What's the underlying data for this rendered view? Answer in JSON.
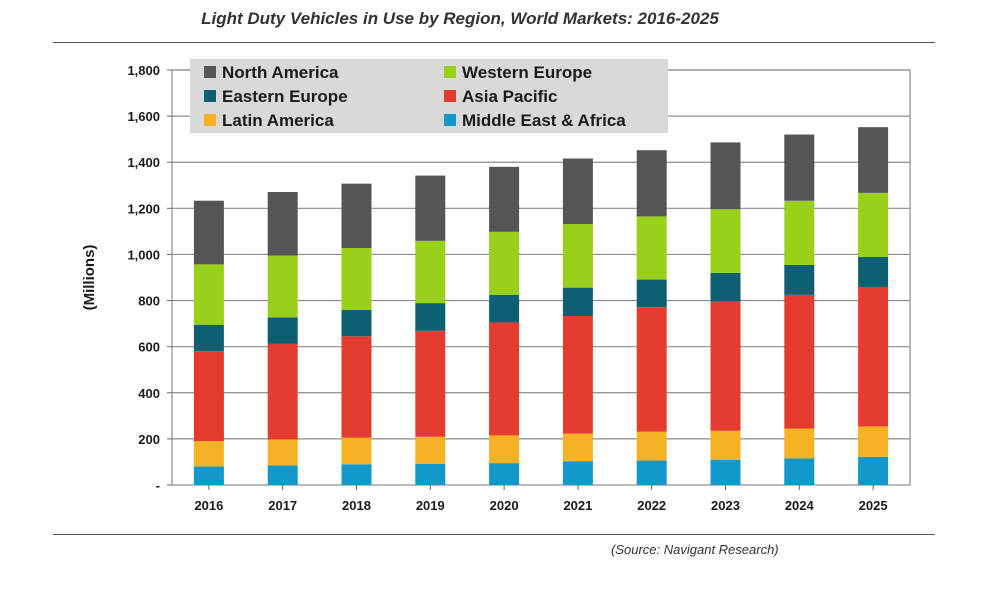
{
  "chart_data": {
    "type": "bar",
    "stacked": true,
    "title": "Light Duty Vehicles in Use by Region, World Markets: 2016-2025",
    "source": "(Source: Navigant Research)",
    "ylabel": "(Millions)",
    "xlabel": "",
    "ylim": [
      0,
      1800
    ],
    "yticks": [
      0,
      200,
      400,
      600,
      800,
      1000,
      1200,
      1400,
      1600,
      1800
    ],
    "ytick_labels": [
      "-",
      "200",
      "400",
      "600",
      "800",
      "1,000",
      "1,200",
      "1,400",
      "1,600",
      "1,800"
    ],
    "grid": true,
    "legend_position": "top-left",
    "categories": [
      "2016",
      "2017",
      "2018",
      "2019",
      "2020",
      "2021",
      "2022",
      "2023",
      "2024",
      "2025"
    ],
    "series": [
      {
        "name": "Middle East & Africa",
        "color": "#1497c9",
        "values": [
          80,
          85,
          90,
          92,
          95,
          103,
          106,
          110,
          115,
          122
        ]
      },
      {
        "name": "Latin America",
        "color": "#f7b125",
        "values": [
          110,
          112,
          115,
          117,
          120,
          120,
          125,
          125,
          130,
          132
        ]
      },
      {
        "name": "Asia Pacific",
        "color": "#e43d2f",
        "values": [
          390,
          415,
          440,
          460,
          490,
          510,
          540,
          560,
          580,
          605
        ]
      },
      {
        "name": "Eastern Europe",
        "color": "#0f5f73",
        "values": [
          115,
          115,
          115,
          120,
          120,
          123,
          120,
          125,
          130,
          130
        ]
      },
      {
        "name": "Western Europe",
        "color": "#99d019",
        "values": [
          262,
          268,
          268,
          270,
          273,
          276,
          274,
          276,
          278,
          278
        ]
      },
      {
        "name": "North America",
        "color": "#555555",
        "values": [
          276,
          276,
          279,
          283,
          282,
          284,
          287,
          290,
          287,
          285
        ]
      }
    ],
    "legend_order": [
      "North America",
      "Western Europe",
      "Eastern Europe",
      "Asia Pacific",
      "Latin America",
      "Middle East & Africa"
    ]
  }
}
